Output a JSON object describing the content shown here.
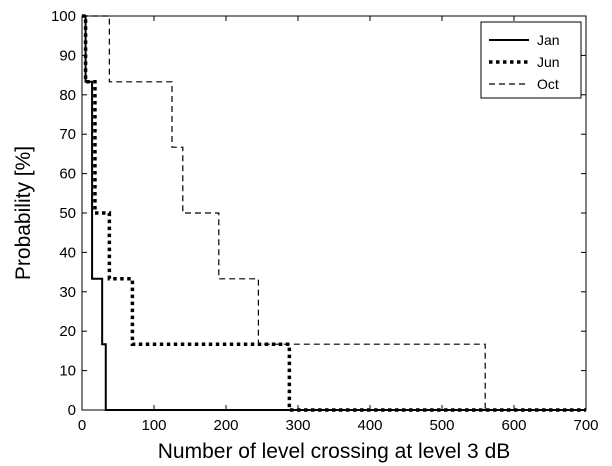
{
  "chart_data": {
    "type": "line",
    "title": "",
    "xlabel": "Number of level crossing at level 3 dB",
    "ylabel": "Probability [%]",
    "xlim": [
      0,
      700
    ],
    "ylim": [
      0,
      100
    ],
    "xticks": [
      "0",
      "100",
      "200",
      "300",
      "400",
      "500",
      "600",
      "700"
    ],
    "yticks": [
      "0",
      "10",
      "20",
      "30",
      "40",
      "50",
      "60",
      "70",
      "80",
      "90",
      "100"
    ],
    "grid": false,
    "legend": "top-right",
    "step": true,
    "series": [
      {
        "name": "Jan",
        "style": "solid",
        "x": [
          0,
          5,
          5,
          14,
          14,
          28,
          28,
          33,
          33,
          700
        ],
        "y": [
          100,
          100,
          83.3,
          83.3,
          33.3,
          33.3,
          16.7,
          16.7,
          0,
          0
        ]
      },
      {
        "name": "Jun",
        "style": "dotted",
        "x": [
          0,
          5,
          5,
          18,
          18,
          28,
          28,
          38,
          38,
          70,
          70,
          288,
          288,
          700
        ],
        "y": [
          100,
          100,
          83.3,
          83.3,
          50,
          50,
          50,
          50,
          33.3,
          33.3,
          16.7,
          16.7,
          0,
          0
        ]
      },
      {
        "name": "Oct",
        "style": "dashed",
        "x": [
          0,
          38,
          38,
          125,
          125,
          140,
          140,
          190,
          190,
          245,
          245,
          560,
          560,
          700
        ],
        "y": [
          100,
          100,
          83.3,
          83.3,
          66.7,
          66.7,
          50,
          50,
          33.3,
          33.3,
          16.7,
          16.7,
          0,
          0
        ]
      }
    ]
  }
}
